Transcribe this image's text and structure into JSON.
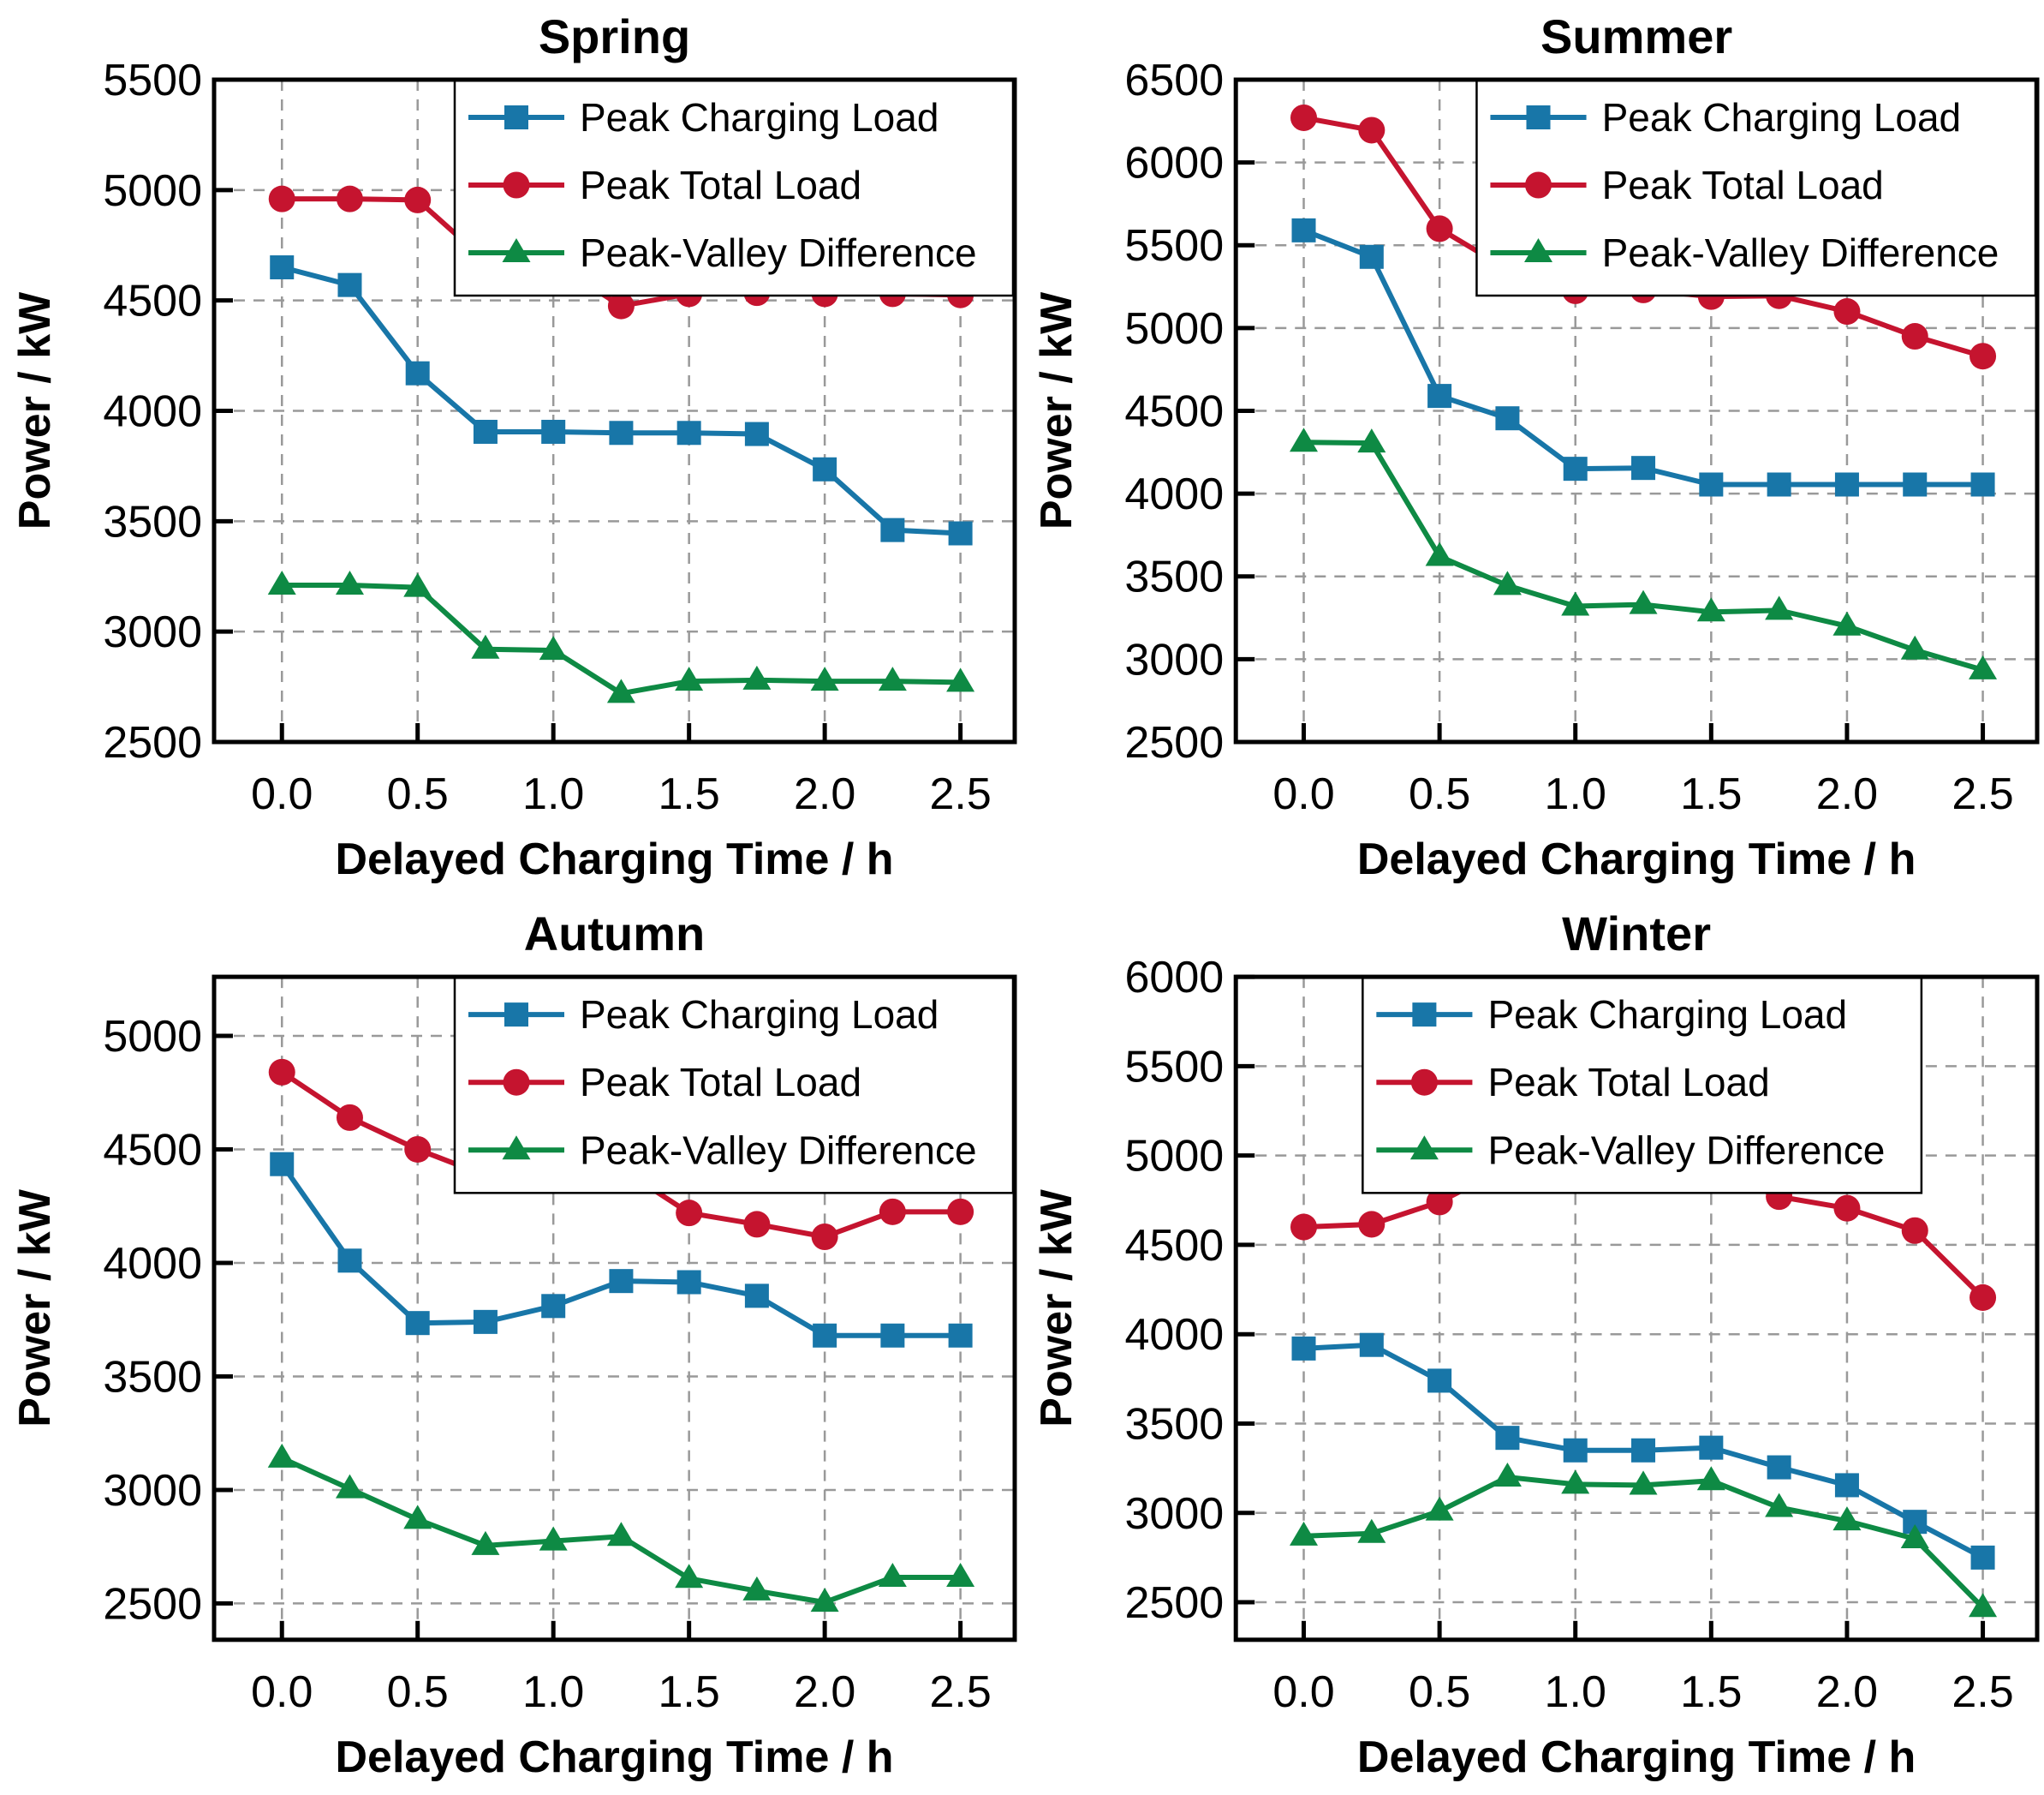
{
  "figure": {
    "background": "#ffffff",
    "layout": "2x2-grid"
  },
  "colors": {
    "peak_charging_load": "#1876A8",
    "peak_total_load": "#C5142F",
    "peak_valley_difference": "#0E8A44",
    "grid_line": "#999999",
    "axis": "#000000",
    "legend_background": "#FFFFFF"
  },
  "legend_labels": {
    "peak_charging_load": "Peak Charging Load",
    "peak_total_load": "Peak Total Load",
    "peak_valley_difference": "Peak-Valley Difference"
  },
  "axis_labels": {
    "x": "Delayed Charging Time / h",
    "y": "Power / kW"
  },
  "chart_data": [
    {
      "type": "line",
      "title": "Spring",
      "xlabel": "Delayed Charging Time / h",
      "ylabel": "Power / kW",
      "x": [
        0,
        0.25,
        0.5,
        0.75,
        1.0,
        1.25,
        1.5,
        1.75,
        2.0,
        2.25,
        2.5
      ],
      "xlim": [
        -0.25,
        2.7
      ],
      "x_tick_labels": [
        "0.0",
        "0.5",
        "1.0",
        "1.5",
        "2.0",
        "2.5"
      ],
      "x_ticks": [
        0.0,
        0.5,
        1.0,
        1.5,
        2.0,
        2.5
      ],
      "ylim": [
        2500,
        5500
      ],
      "yticks": [
        2500,
        3000,
        3500,
        4000,
        4500,
        5000,
        5500
      ],
      "grid": true,
      "legend_position": "top-right",
      "series": [
        {
          "name": "Peak Charging Load",
          "marker": "square",
          "color_key": "peak_charging_load",
          "values": [
            4650,
            4570,
            4170,
            3905,
            3905,
            3900,
            3900,
            3895,
            3735,
            3460,
            3445
          ]
        },
        {
          "name": "Peak Total Load",
          "marker": "circle",
          "color_key": "peak_total_load",
          "values": [
            4960,
            4960,
            4955,
            4680,
            4670,
            4475,
            4530,
            4535,
            4530,
            4530,
            4525
          ]
        },
        {
          "name": "Peak-Valley Difference",
          "marker": "triangle",
          "color_key": "peak_valley_difference",
          "values": [
            3210,
            3210,
            3200,
            2920,
            2915,
            2720,
            2775,
            2780,
            2775,
            2775,
            2770
          ]
        }
      ]
    },
    {
      "type": "line",
      "title": "Summer",
      "xlabel": "Delayed Charging Time / h",
      "ylabel": "Power / kW",
      "x": [
        0,
        0.25,
        0.5,
        0.75,
        1.0,
        1.25,
        1.5,
        1.75,
        2.0,
        2.25,
        2.5
      ],
      "xlim": [
        -0.25,
        2.7
      ],
      "x_tick_labels": [
        "0.0",
        "0.5",
        "1.0",
        "1.5",
        "2.0",
        "2.5"
      ],
      "x_ticks": [
        0.0,
        0.5,
        1.0,
        1.5,
        2.0,
        2.5
      ],
      "ylim": [
        2500,
        6500
      ],
      "yticks": [
        2500,
        3000,
        3500,
        4000,
        4500,
        5000,
        5500,
        6000,
        6500
      ],
      "grid": true,
      "legend_position": "top-right",
      "series": [
        {
          "name": "Peak Charging Load",
          "marker": "square",
          "color_key": "peak_charging_load",
          "values": [
            5590,
            5430,
            4590,
            4455,
            4150,
            4155,
            4055,
            4055,
            4055,
            4055,
            4055
          ]
        },
        {
          "name": "Peak Total Load",
          "marker": "circle",
          "color_key": "peak_total_load",
          "values": [
            6270,
            6195,
            5600,
            5355,
            5225,
            5230,
            5190,
            5195,
            5100,
            4950,
            4830
          ]
        },
        {
          "name": "Peak-Valley Difference",
          "marker": "triangle",
          "color_key": "peak_valley_difference",
          "values": [
            4310,
            4305,
            3620,
            3445,
            3320,
            3330,
            3285,
            3295,
            3200,
            3055,
            2935
          ]
        }
      ]
    },
    {
      "type": "line",
      "title": "Autumn",
      "xlabel": "Delayed Charging Time / h",
      "ylabel": "Power / kW",
      "x": [
        0,
        0.25,
        0.5,
        0.75,
        1.0,
        1.25,
        1.5,
        1.75,
        2.0,
        2.25,
        2.5
      ],
      "xlim": [
        -0.25,
        2.7
      ],
      "x_tick_labels": [
        "0.0",
        "0.5",
        "1.0",
        "1.5",
        "2.0",
        "2.5"
      ],
      "x_ticks": [
        0.0,
        0.5,
        1.0,
        1.5,
        2.0,
        2.5
      ],
      "ylim": [
        2340,
        5260
      ],
      "yticks": [
        2500,
        3000,
        3500,
        4000,
        4500,
        5000
      ],
      "grid": true,
      "legend_position": "top-right",
      "series": [
        {
          "name": "Peak Charging Load",
          "marker": "square",
          "color_key": "peak_charging_load",
          "values": [
            4435,
            4010,
            3735,
            3740,
            3810,
            3920,
            3915,
            3855,
            3680,
            3680,
            3680
          ]
        },
        {
          "name": "Peak Total Load",
          "marker": "circle",
          "color_key": "peak_total_load",
          "values": [
            4840,
            4640,
            4500,
            4385,
            4385,
            4415,
            4220,
            4170,
            4115,
            4225,
            4225
          ]
        },
        {
          "name": "Peak-Valley Difference",
          "marker": "triangle",
          "color_key": "peak_valley_difference",
          "values": [
            3140,
            3005,
            2870,
            2755,
            2775,
            2795,
            2610,
            2555,
            2505,
            2615,
            2615
          ]
        }
      ]
    },
    {
      "type": "line",
      "title": "Winter",
      "xlabel": "Delayed Charging Time / h",
      "ylabel": "Power / kW",
      "x": [
        0,
        0.25,
        0.5,
        0.75,
        1.0,
        1.25,
        1.5,
        1.75,
        2.0,
        2.25,
        2.5
      ],
      "xlim": [
        -0.25,
        2.7
      ],
      "x_tick_labels": [
        "0.0",
        "0.5",
        "1.0",
        "1.5",
        "2.0",
        "2.5"
      ],
      "x_ticks": [
        0.0,
        0.5,
        1.0,
        1.5,
        2.0,
        2.5
      ],
      "ylim": [
        2290,
        6000
      ],
      "yticks": [
        2500,
        3000,
        3500,
        4000,
        4500,
        5000,
        5500,
        6000
      ],
      "grid": true,
      "legend_position": "top-center",
      "series": [
        {
          "name": "Peak Charging Load",
          "marker": "square",
          "color_key": "peak_charging_load",
          "values": [
            3920,
            3940,
            3740,
            3420,
            3350,
            3350,
            3365,
            3255,
            3155,
            2950,
            2750
          ]
        },
        {
          "name": "Peak Total Load",
          "marker": "circle",
          "color_key": "peak_total_load",
          "values": [
            4600,
            4615,
            4740,
            4935,
            4900,
            4895,
            4920,
            4770,
            4705,
            4580,
            4205
          ]
        },
        {
          "name": "Peak-Valley Difference",
          "marker": "triangle",
          "color_key": "peak_valley_difference",
          "values": [
            2870,
            2885,
            3010,
            3200,
            3160,
            3155,
            3180,
            3030,
            2955,
            2855,
            2470
          ]
        }
      ]
    }
  ]
}
